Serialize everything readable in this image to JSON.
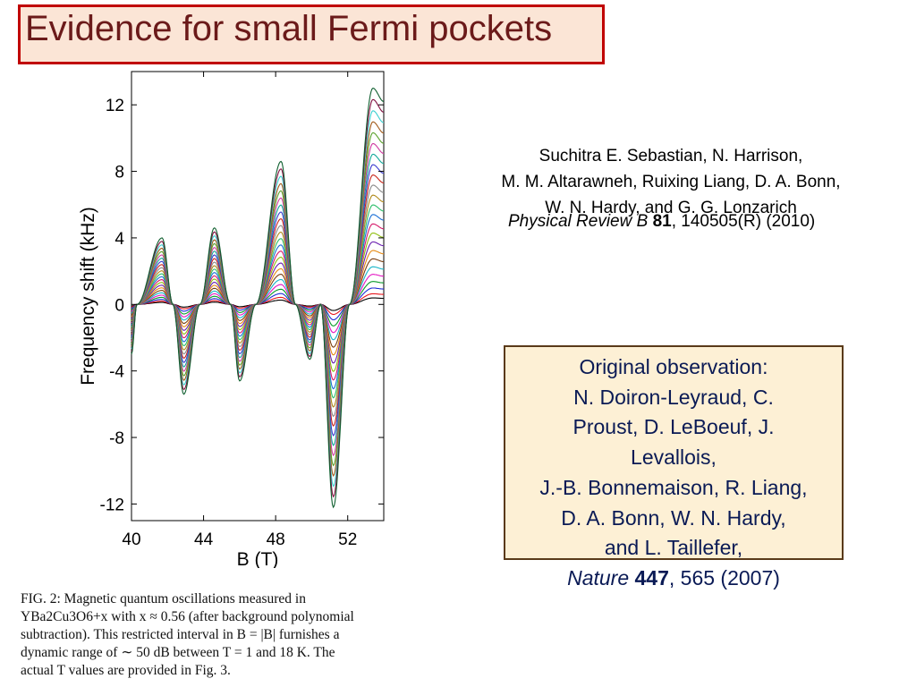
{
  "title": "Evidence for small Fermi pockets",
  "authors": {
    "lines": [
      "Suchitra E. Sebastian, N. Harrison,",
      "M. M. Altarawneh, Ruixing Liang, D. A. Bonn,",
      "W. N. Hardy, and G. G. Lonzarich"
    ],
    "citation": {
      "journal": "Physical Review B",
      "volume": "81",
      "rest": ", 140505(R) (2010)"
    }
  },
  "original_observation": {
    "lines": [
      "Original observation:",
      "N. Doiron-Leyraud, C.",
      "Proust, D. LeBoeuf, J.",
      "Levallois,",
      "J.-B. Bonnemaison, R. Liang,",
      "D. A. Bonn, W. N. Hardy,",
      "and L. Taillefer,"
    ],
    "citation": {
      "journal": "Nature",
      "volume": "447",
      "rest": ", 565 (2007)"
    }
  },
  "caption": {
    "lines": [
      "FIG. 2: Magnetic quantum oscillations measured in",
      "YBa2Cu3O6+x with x ≈ 0.56 (after background polynomial",
      "subtraction). This restricted interval in B = |B| furnishes a",
      "dynamic range of ∼ 50 dB between T = 1 and 18 K. The",
      "actual T values are provided in Fig. 3."
    ]
  },
  "chart_data": {
    "type": "line",
    "xlabel": "B (T)",
    "ylabel": "Frequency shift (kHz)",
    "xlim": [
      40,
      54
    ],
    "ylim": [
      -13,
      14
    ],
    "xticks": [
      40,
      44,
      48,
      52
    ],
    "yticks": [
      12,
      8,
      4,
      0,
      -4,
      -8,
      -12
    ],
    "grid": false,
    "legend": "none",
    "series_count": 24,
    "extrema_of_largest_curve": [
      {
        "x": 41.7,
        "y": 4.0
      },
      {
        "x": 42.9,
        "y": -5.4
      },
      {
        "x": 44.6,
        "y": 4.6
      },
      {
        "x": 46.0,
        "y": -4.6
      },
      {
        "x": 48.3,
        "y": 8.6
      },
      {
        "x": 49.9,
        "y": -3.3
      },
      {
        "x": 51.2,
        "y": -12.2
      },
      {
        "x": 53.4,
        "y": 13.0
      }
    ],
    "zero_crossings": [
      40.3,
      42.3,
      43.8,
      45.5,
      46.9,
      49.1,
      50.5,
      52.1
    ],
    "series_colors": [
      "#000000",
      "#e8171e",
      "#1e2ad6",
      "#0a9a2a",
      "#e516c3",
      "#17b5c8",
      "#7a3f12",
      "#e58a14",
      "#6a1fb0",
      "#8fbf0f",
      "#d61a6a",
      "#1a6fd6",
      "#2bbf6a",
      "#b08a1a",
      "#8a8a8a",
      "#c8261a",
      "#3a3acf",
      "#12a89a",
      "#cf3aa0",
      "#5aa02a",
      "#a05a1a",
      "#3acfcf",
      "#7f0f3f",
      "#0f5f2f"
    ]
  }
}
